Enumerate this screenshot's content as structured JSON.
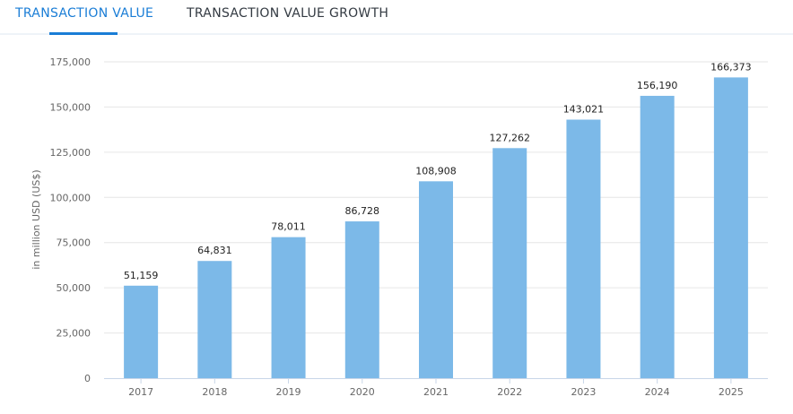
{
  "tabs": [
    {
      "label": "TRANSACTION VALUE",
      "active": true
    },
    {
      "label": "TRANSACTION VALUE GROWTH",
      "active": false
    }
  ],
  "chart_data": {
    "type": "bar",
    "title": "",
    "xlabel": "",
    "ylabel": "in million USD (US$)",
    "categories": [
      "2017",
      "2018",
      "2019",
      "2020",
      "2021",
      "2022",
      "2023",
      "2024",
      "2025"
    ],
    "values": [
      51159,
      64831,
      78011,
      86728,
      108908,
      127262,
      143021,
      156190,
      166373
    ],
    "data_labels": [
      "51,159",
      "64,831",
      "78,011",
      "86,728",
      "108,908",
      "127,262",
      "143,021",
      "156,190",
      "166,373"
    ],
    "ylim": [
      0,
      175000
    ],
    "yticks": [
      0,
      25000,
      50000,
      75000,
      100000,
      125000,
      150000,
      175000
    ],
    "ytick_labels": [
      "0",
      "25,000",
      "50,000",
      "75,000",
      "100,000",
      "125,000",
      "150,000",
      "175,000"
    ],
    "grid": true,
    "legend": "none",
    "bar_color": "#7cb9e8"
  }
}
